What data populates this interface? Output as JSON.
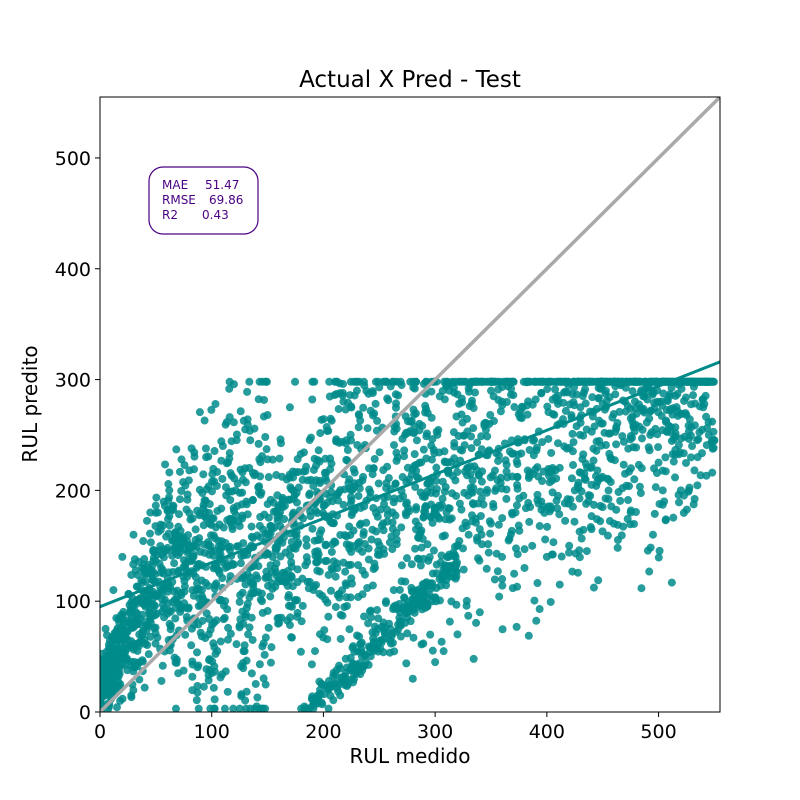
{
  "chart_data": {
    "type": "scatter",
    "title": "Actual X Pred - Test",
    "xlabel": "RUL medido",
    "ylabel": "RUL predito",
    "xlim": [
      0,
      555
    ],
    "ylim": [
      0,
      555
    ],
    "xticks": [
      0,
      100,
      200,
      300,
      400,
      500
    ],
    "yticks": [
      0,
      100,
      200,
      300,
      400,
      500
    ],
    "grid": false,
    "point_color": "#008b8b",
    "identity_line_color": "#a9a9a9",
    "regression_line": {
      "x": [
        0,
        555
      ],
      "y": [
        95,
        316
      ],
      "color": "#008b8b"
    },
    "stats_box_color": "#4b0082",
    "stats": [
      {
        "label": "MAE",
        "value": "51.47"
      },
      {
        "label": "RMSE",
        "value": "69.86"
      },
      {
        "label": "R2",
        "value": "0.43"
      }
    ],
    "outlier_points": {
      "x": [
        183,
        190,
        197,
        205,
        212,
        220,
        226,
        232,
        240,
        248,
        256,
        263,
        270,
        215,
        222,
        230,
        238,
        245,
        252,
        260,
        268,
        275,
        282,
        290,
        298,
        305,
        312,
        320,
        330,
        340,
        350,
        360,
        372,
        385,
        395,
        410,
        425,
        440,
        455,
        470,
        485,
        500,
        515,
        530,
        545,
        548,
        540,
        525,
        510,
        490,
        470,
        450,
        430,
        410,
        390,
        370,
        350,
        330,
        310,
        290,
        270,
        250,
        230,
        210,
        190,
        170,
        150,
        130,
        110,
        95,
        80,
        62,
        45,
        30,
        20,
        12,
        5,
        280,
        300,
        320,
        340,
        360,
        380,
        400,
        420,
        440,
        460,
        475,
        495,
        505,
        520,
        535,
        550,
        265,
        245,
        225,
        205,
        185,
        165,
        145,
        125,
        105,
        88,
        70,
        55,
        40,
        28,
        18,
        8
      ],
      "y": [
        5,
        12,
        20,
        28,
        38,
        48,
        58,
        68,
        80,
        92,
        100,
        110,
        118,
        15,
        25,
        35,
        45,
        55,
        65,
        75,
        85,
        95,
        105,
        115,
        125,
        135,
        140,
        150,
        160,
        165,
        170,
        175,
        180,
        185,
        190,
        195,
        200,
        205,
        210,
        215,
        220,
        225,
        232,
        240,
        250,
        262,
        275,
        268,
        285,
        282,
        280,
        278,
        275,
        278,
        282,
        286,
        290,
        292,
        294,
        296,
        295,
        293,
        290,
        286,
        282,
        275,
        268,
        255,
        240,
        230,
        218,
        200,
        180,
        160,
        140,
        110,
        75,
        30,
        45,
        70,
        90,
        120,
        130,
        140,
        150,
        165,
        170,
        180,
        160,
        190,
        200,
        230,
        245,
        260,
        220,
        200,
        175,
        150,
        125,
        100,
        78,
        55,
        42,
        35,
        28,
        22,
        15,
        10,
        5
      ]
    }
  }
}
